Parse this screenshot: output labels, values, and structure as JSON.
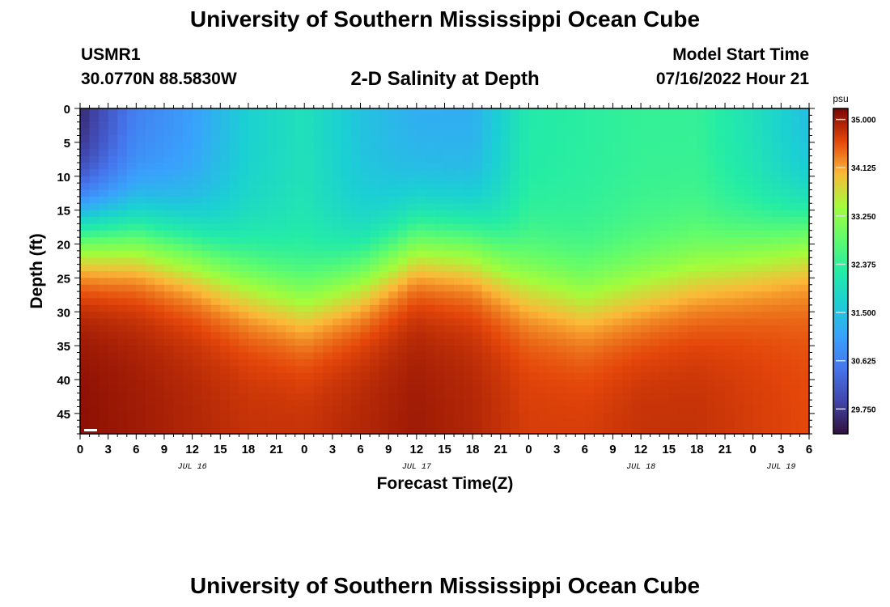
{
  "header": {
    "title": "University of Southern Mississippi Ocean Cube",
    "station": "USMR1",
    "coords": "30.0770N  88.5830W",
    "product": "2-D Salinity at Depth",
    "model_start_label": "Model Start Time",
    "model_start_value": "07/16/2022 Hour 21"
  },
  "footer": {
    "title": "University of Southern Mississippi Ocean Cube"
  },
  "chart_data": {
    "type": "heatmap",
    "title": "2-D Salinity at Depth",
    "xlabel": "Forecast Time(Z)",
    "ylabel": "Depth (ft)",
    "x_range_hours": [
      0,
      78
    ],
    "ylim": [
      0,
      48
    ],
    "x_tick_labels": [
      "0",
      "3",
      "6",
      "9",
      "12",
      "15",
      "18",
      "21",
      "0",
      "3",
      "6",
      "9",
      "12",
      "15",
      "18",
      "21",
      "0",
      "3",
      "6",
      "9",
      "12",
      "15",
      "18",
      "21",
      "0",
      "3",
      "6"
    ],
    "y_ticks": [
      0,
      5,
      10,
      15,
      20,
      25,
      30,
      35,
      40,
      45
    ],
    "day_labels": [
      {
        "label": "JUL 16",
        "hour": 12
      },
      {
        "label": "JUL 17",
        "hour": 36
      },
      {
        "label": "JUL 18",
        "hour": 60
      },
      {
        "label": "JUL 19",
        "hour": 75
      }
    ],
    "colorbar": {
      "unit": "psu",
      "min": 29.3,
      "max": 35.2,
      "labels": [
        "35.000",
        "34.125",
        "33.250",
        "32.375",
        "31.500",
        "30.625",
        "29.750"
      ]
    },
    "halocline_depth_ft": {
      "hours": [
        0,
        6,
        12,
        18,
        24,
        30,
        36,
        42,
        48,
        54,
        60,
        66,
        72,
        78
      ],
      "depth": [
        18.0,
        19.0,
        21.5,
        25.5,
        28.5,
        25.0,
        20.0,
        20.5,
        25.5,
        28.0,
        26.5,
        24.5,
        22.0,
        19.0
      ]
    },
    "surface_salinity_psu": {
      "hours": [
        0,
        6,
        12,
        18,
        24,
        30,
        36,
        42,
        48,
        54,
        60,
        66,
        72,
        78
      ],
      "value": [
        29.5,
        30.6,
        31.0,
        31.7,
        32.0,
        31.5,
        31.2,
        31.2,
        32.2,
        32.3,
        32.4,
        32.4,
        32.0,
        31.4
      ]
    },
    "bottom_salinity_psu": {
      "hours": [
        0,
        6,
        12,
        18,
        24,
        30,
        36,
        42,
        48,
        54,
        60,
        66,
        72,
        78
      ],
      "value": [
        35.1,
        35.0,
        34.9,
        34.8,
        34.8,
        34.9,
        35.0,
        34.9,
        34.7,
        34.7,
        34.8,
        34.8,
        34.7,
        34.6
      ]
    },
    "colors": {
      "frame": "#000000",
      "nodata_marker": "#ffffff"
    }
  }
}
